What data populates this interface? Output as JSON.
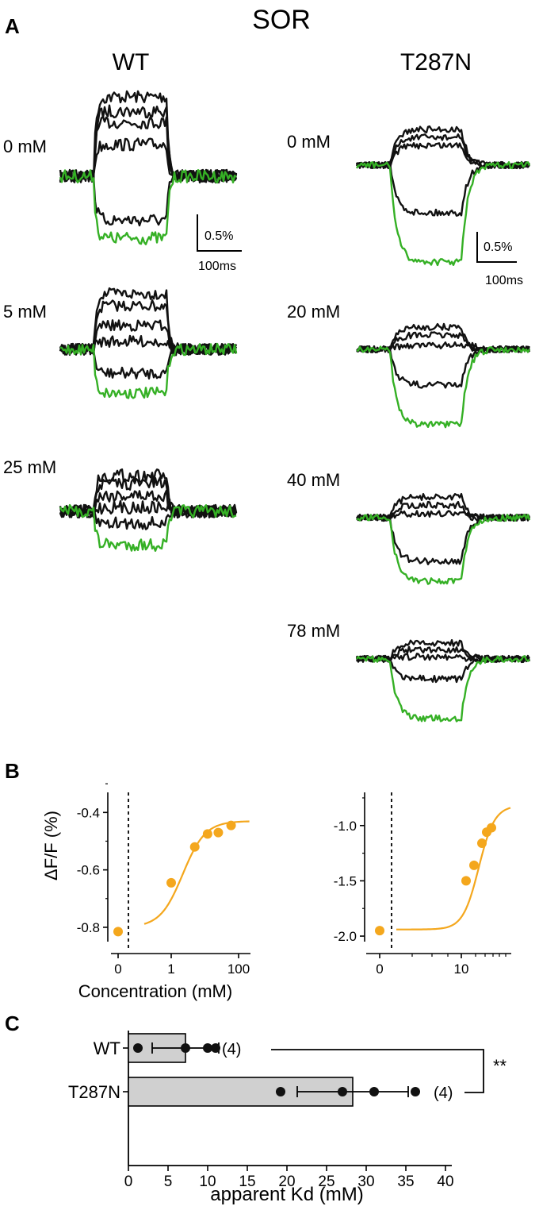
{
  "panel_letters": {
    "a": "A",
    "b": "B",
    "c": "C"
  },
  "panel_a": {
    "title": "SOR",
    "wt": {
      "header": "WT",
      "rows": [
        {
          "label": "0 mM"
        },
        {
          "label": "5 mM"
        },
        {
          "label": "25 mM"
        }
      ],
      "scale_y": "0.5%",
      "scale_x": "100ms"
    },
    "mut": {
      "header": "T287N",
      "rows": [
        {
          "label": "0 mM"
        },
        {
          "label": "20 mM"
        },
        {
          "label": "40 mM"
        },
        {
          "label": "78 mM"
        }
      ],
      "scale_y": "0.5%",
      "scale_x": "100ms"
    }
  },
  "colors": {
    "trace_black": "#111111",
    "trace_green": "#35b025",
    "accent_orange": "#f4a71d",
    "bar_fill": "#d0d0d0"
  },
  "chart_data": [
    {
      "type": "scatter",
      "panel": "B-left",
      "ylabel": "ΔF/F (%)",
      "xlabel": "Concentration (mM)",
      "x_scale": "log",
      "x_ticks": [
        "0",
        "1",
        "100"
      ],
      "y_ticks": [
        "-0.4",
        "-0.6",
        "-0.8"
      ],
      "ylim": [
        -0.85,
        -0.33
      ],
      "points": [
        {
          "x": 0,
          "y": -0.815
        },
        {
          "x": 1,
          "y": -0.645
        },
        {
          "x": 5,
          "y": -0.52
        },
        {
          "x": 12,
          "y": -0.475
        },
        {
          "x": 25,
          "y": -0.47
        },
        {
          "x": 60,
          "y": -0.445
        }
      ],
      "fit": "sigmoid",
      "dashed_line_at": "axis break"
    },
    {
      "type": "scatter",
      "panel": "B-right",
      "x_ticks": [
        "0",
        "10"
      ],
      "y_ticks": [
        "-1.0",
        "-1.5",
        "-2.0"
      ],
      "ylim": [
        -2.05,
        -0.7
      ],
      "points": [
        {
          "x": 0,
          "y": -1.95
        },
        {
          "x": 10,
          "y": -1.5
        },
        {
          "x": 20,
          "y": -1.36
        },
        {
          "x": 30,
          "y": -1.16
        },
        {
          "x": 40,
          "y": -1.06
        },
        {
          "x": 50,
          "y": -1.02
        }
      ],
      "fit": "sigmoid"
    },
    {
      "type": "bar",
      "panel": "C",
      "orientation": "horizontal",
      "categories": [
        "WT",
        "T287N"
      ],
      "values": [
        7.2,
        28.3
      ],
      "errors": [
        4.2,
        7.0
      ],
      "points": [
        [
          1.2,
          7.2,
          10.0,
          11.0
        ],
        [
          19.2,
          27.0,
          31.0,
          36.2
        ]
      ],
      "n_labels": [
        "(4)",
        "(4)"
      ],
      "xlabel": "apparent Kd (mM)",
      "xlim": [
        0,
        40
      ],
      "x_ticks": [
        "0",
        "5",
        "10",
        "15",
        "20",
        "25",
        "30",
        "35",
        "40"
      ],
      "significance": "**"
    }
  ]
}
